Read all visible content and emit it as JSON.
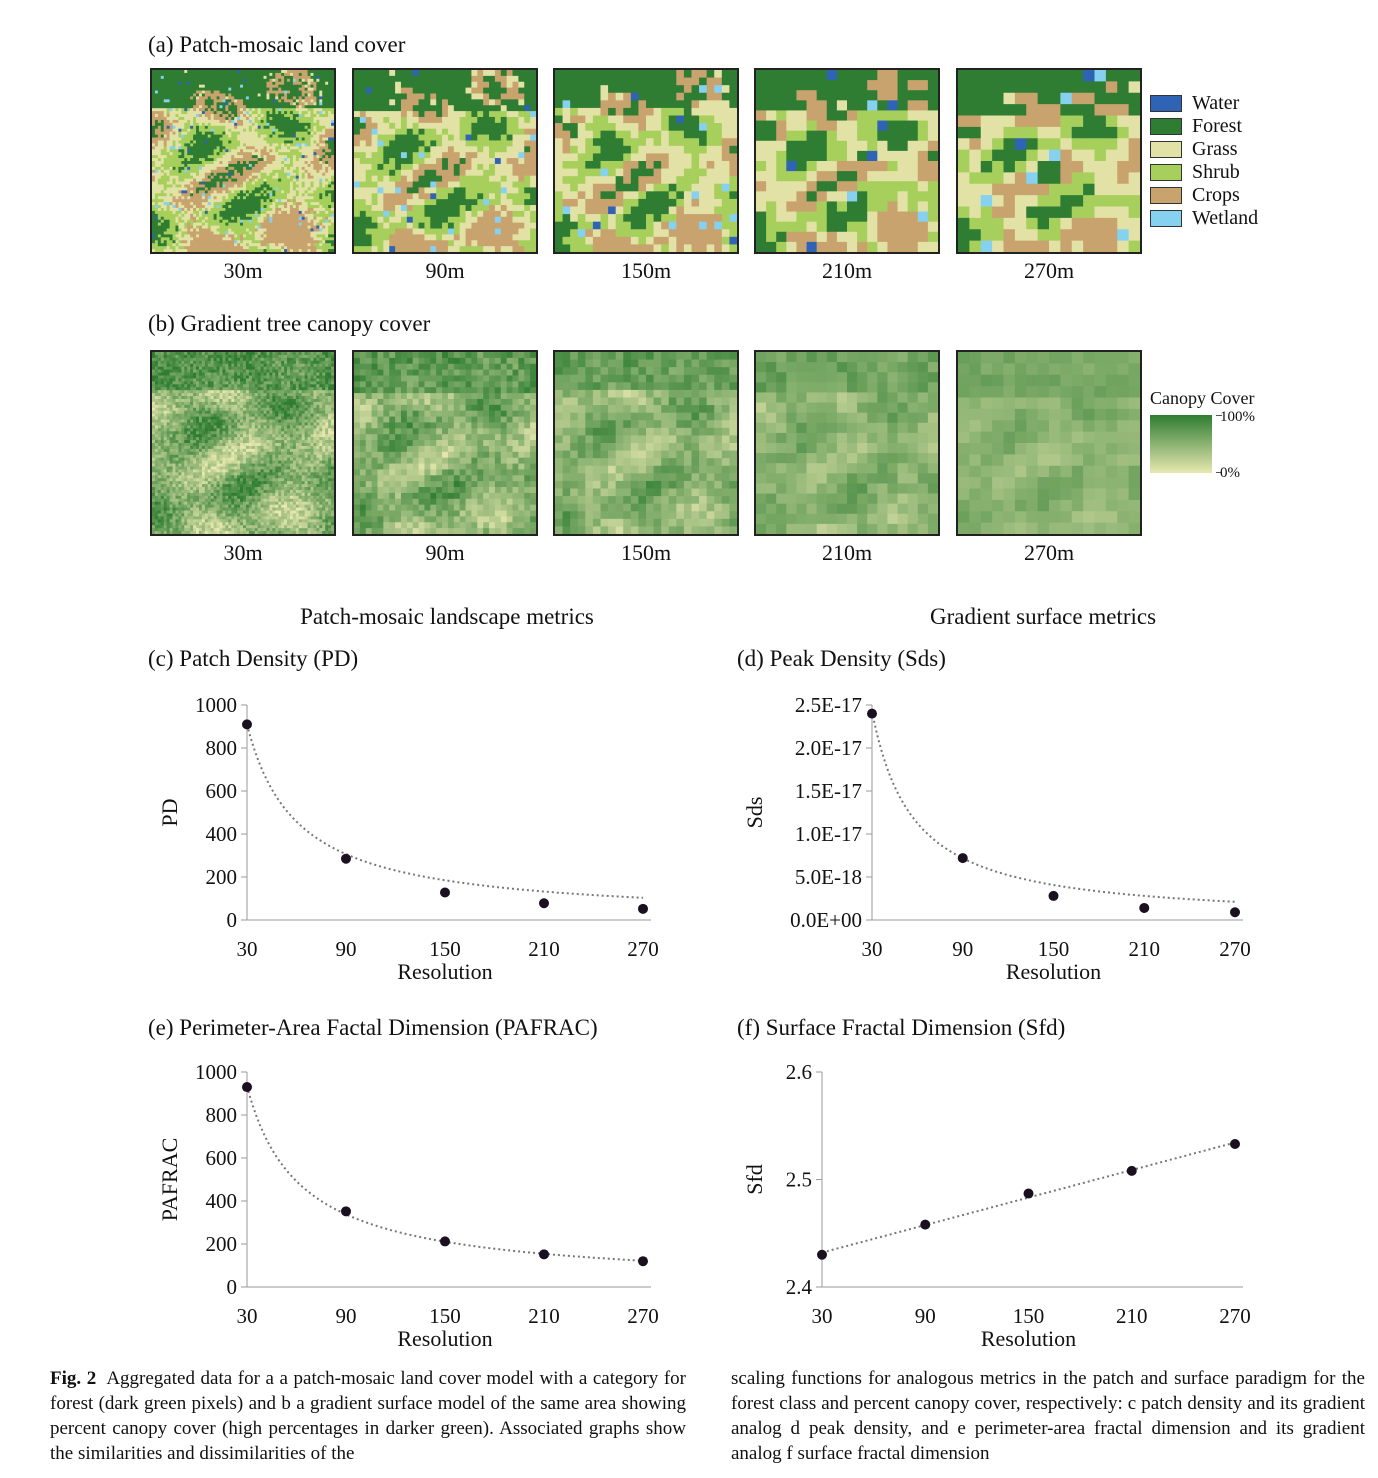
{
  "panel_a": {
    "title": "(a) Patch-mosaic land cover",
    "resolutions": [
      "30m",
      "90m",
      "150m",
      "210m",
      "270m"
    ],
    "legend": [
      {
        "label": "Water",
        "color": "#2f63b5"
      },
      {
        "label": "Forest",
        "color": "#2e7d32"
      },
      {
        "label": "Grass",
        "color": "#e2e2a6"
      },
      {
        "label": "Shrub",
        "color": "#a6cf5c"
      },
      {
        "label": "Crops",
        "color": "#c9a36e"
      },
      {
        "label": "Wetland",
        "color": "#86d0f0"
      }
    ]
  },
  "panel_b": {
    "title": "(b) Gradient tree canopy cover",
    "resolutions": [
      "30m",
      "90m",
      "150m",
      "210m",
      "270m"
    ],
    "legend_title": "Canopy Cover",
    "legend_high": "100%",
    "legend_low": "0%",
    "color_high": "#2e7d32",
    "color_low": "#e8e8b0"
  },
  "sections": {
    "left": "Patch-mosaic landscape metrics",
    "right": "Gradient surface metrics"
  },
  "chart_data": [
    {
      "id": "c",
      "type": "scatter",
      "title": "(c) Patch Density (PD)",
      "xlabel": "Resolution",
      "ylabel": "PD",
      "x": [
        30,
        90,
        150,
        210,
        270
      ],
      "y": [
        910,
        285,
        128,
        78,
        52
      ],
      "xlim": [
        30,
        270
      ],
      "ylim": [
        0,
        1000
      ],
      "yticks": [
        0,
        200,
        400,
        600,
        800,
        1000
      ],
      "ytick_labels": [
        "0",
        "200",
        "400",
        "600",
        "800",
        "1000"
      ],
      "xticks": [
        "30",
        "90",
        "150",
        "210",
        "270"
      ],
      "trendline": "power",
      "trend_a": 26360,
      "trend_b": -0.99
    },
    {
      "id": "d",
      "type": "scatter",
      "title": "(d) Peak Density (Sds)",
      "xlabel": "Resolution",
      "ylabel": "Sds",
      "x": [
        30,
        90,
        150,
        210,
        270
      ],
      "y": [
        2.4e-17,
        7.2e-18,
        2.8e-18,
        1.4e-18,
        9e-19
      ],
      "xlim": [
        30,
        270
      ],
      "ylim": [
        0,
        2.5e-17
      ],
      "yticks": [
        0,
        5e-18,
        1e-17,
        1.5e-17,
        2e-17,
        2.5e-17
      ],
      "ytick_labels": [
        "0.0E+00",
        "5.0E-18",
        "1.0E-17",
        "1.5E-17",
        "2.0E-17",
        "2.5E-17"
      ],
      "xticks": [
        "30",
        "90",
        "150",
        "210",
        "270"
      ],
      "trendline": "power",
      "trend_a": 1.06e-15,
      "trend_b": -1.11
    },
    {
      "id": "e",
      "type": "scatter",
      "title": "(e) Perimeter-Area Factal Dimension (PAFRAC)",
      "xlabel": "Resolution",
      "ylabel": "PAFRAC",
      "x": [
        30,
        90,
        150,
        210,
        270
      ],
      "y": [
        930,
        352,
        212,
        152,
        120
      ],
      "xlim": [
        30,
        270
      ],
      "ylim": [
        0,
        1000
      ],
      "yticks": [
        0,
        200,
        400,
        600,
        800,
        1000
      ],
      "ytick_labels": [
        "0",
        "200",
        "400",
        "600",
        "800",
        "1000"
      ],
      "xticks": [
        "30",
        "90",
        "150",
        "210",
        "270"
      ],
      "trendline": "power",
      "trend_a": 21700,
      "trend_b": -0.925
    },
    {
      "id": "f",
      "type": "scatter",
      "title": "(f) Surface Fractal Dimension (Sfd)",
      "xlabel": "Resolution",
      "ylabel": "Sfd",
      "x": [
        30,
        90,
        150,
        210,
        270
      ],
      "y": [
        2.43,
        2.458,
        2.487,
        2.508,
        2.533
      ],
      "xlim": [
        30,
        270
      ],
      "ylim": [
        2.4,
        2.6
      ],
      "yticks": [
        2.4,
        2.5,
        2.6
      ],
      "ytick_labels": [
        "2.4",
        "2.5",
        "2.6"
      ],
      "xticks": [
        "30",
        "90",
        "150",
        "210",
        "270"
      ],
      "trendline": "linear"
    }
  ],
  "caption": {
    "fig_label": "Fig. 2",
    "left_text": "Aggregated data for a a patch-mosaic land cover model with a category for forest (dark green pixels) and b a gradient surface model of the same area showing percent canopy cover (high percentages in darker green). Associated graphs show the similarities and dissimilarities of the",
    "right_text": "scaling functions for analogous metrics in the patch and surface paradigm for the forest class and percent canopy cover, respectively: c patch density and its gradient analog d peak density, and e perimeter-area fractal dimension and its gradient analog f surface fractal dimension"
  }
}
